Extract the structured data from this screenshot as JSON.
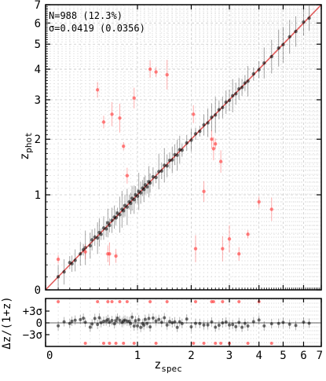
{
  "chart_data": [
    {
      "type": "scatter",
      "scale": "log1p",
      "xlim": [
        0,
        7
      ],
      "ylim": [
        0,
        7
      ],
      "xticks": [
        "0",
        "1",
        "2",
        "3",
        "4",
        "5",
        "6",
        "7"
      ],
      "yticks": [
        "0",
        "1",
        "2",
        "3",
        "4",
        "5",
        "6",
        "7"
      ],
      "xtick_values": [
        0,
        1,
        2,
        3,
        4,
        5,
        6,
        7
      ],
      "ytick_values": [
        0,
        1,
        2,
        3,
        4,
        5,
        6,
        7
      ],
      "grid": true,
      "annotations": [
        "N=988 (12.3%)",
        "σ=0.0419 (0.0356)"
      ],
      "reference_line": {
        "from": [
          0,
          0
        ],
        "to": [
          7,
          7
        ],
        "color": "#e05a5a"
      },
      "colors": {
        "good": "#000000",
        "outlier": "#ff4d4d"
      },
      "series": [
        {
          "role": "good",
          "x": [
            0.1,
            0.15,
            0.2,
            0.22,
            0.25,
            0.3,
            0.33,
            0.35,
            0.4,
            0.42,
            0.45,
            0.48,
            0.5,
            0.52,
            0.55,
            0.58,
            0.6,
            0.62,
            0.65,
            0.68,
            0.7,
            0.72,
            0.75,
            0.78,
            0.8,
            0.82,
            0.85,
            0.88,
            0.9,
            0.92,
            0.95,
            0.97,
            1.0,
            1.02,
            1.05,
            1.08,
            1.1,
            1.12,
            1.15,
            1.18,
            1.2,
            1.25,
            1.3,
            1.35,
            1.4,
            1.45,
            1.5,
            1.55,
            1.6,
            1.65,
            1.7,
            1.75,
            1.8,
            1.9,
            2.0,
            2.1,
            2.2,
            2.3,
            2.4,
            2.5,
            2.6,
            2.7,
            2.8,
            2.9,
            3.0,
            3.1,
            3.2,
            3.3,
            3.4,
            3.5,
            3.6,
            3.8,
            4.0,
            4.2,
            4.5,
            4.8,
            5.0,
            5.3,
            5.6,
            6.0,
            6.3
          ],
          "y": [
            0.1,
            0.14,
            0.22,
            0.21,
            0.24,
            0.3,
            0.34,
            0.36,
            0.38,
            0.44,
            0.47,
            0.46,
            0.52,
            0.5,
            0.57,
            0.56,
            0.63,
            0.6,
            0.66,
            0.7,
            0.69,
            0.75,
            0.73,
            0.8,
            0.78,
            0.85,
            0.83,
            0.9,
            0.88,
            0.95,
            0.93,
            1.0,
            0.98,
            1.05,
            1.03,
            1.1,
            1.08,
            1.15,
            1.12,
            1.2,
            1.18,
            1.28,
            1.27,
            1.37,
            1.38,
            1.48,
            1.47,
            1.57,
            1.58,
            1.68,
            1.67,
            1.78,
            1.77,
            1.92,
            1.98,
            2.12,
            2.18,
            2.33,
            2.38,
            2.52,
            2.58,
            2.72,
            2.78,
            2.93,
            2.98,
            3.12,
            3.18,
            3.33,
            3.38,
            3.52,
            3.58,
            3.83,
            3.98,
            4.23,
            4.48,
            4.83,
            4.98,
            5.33,
            5.58,
            6.05,
            6.25
          ]
        },
        {
          "role": "outlier",
          "x": [
            0.1,
            0.35,
            0.48,
            0.55,
            0.6,
            0.62,
            0.65,
            0.7,
            0.75,
            0.8,
            0.85,
            0.95,
            1.2,
            1.3,
            1.5,
            2.05,
            2.1,
            2.3,
            2.5,
            2.6,
            2.8,
            3.0,
            3.3,
            3.6,
            4.0,
            4.5,
            2.55,
            2.75
          ],
          "y": [
            0.25,
            0.32,
            3.3,
            2.4,
            0.3,
            0.3,
            2.6,
            0.28,
            2.5,
            1.85,
            1.3,
            3.05,
            4.0,
            3.9,
            3.8,
            2.6,
            0.35,
            1.05,
            2.0,
            1.9,
            0.35,
            0.45,
            0.3,
            0.5,
            0.9,
            0.8,
            1.8,
            1.55
          ]
        }
      ]
    },
    {
      "type": "scatter",
      "xlim": [
        0,
        7
      ],
      "xticks": [
        "0",
        "1",
        "2",
        "3",
        "4",
        "5",
        "6",
        "7"
      ],
      "xtick_values": [
        0,
        1,
        2,
        3,
        4,
        5,
        6,
        7
      ],
      "ytick_labels": [
        "+3σ",
        "0",
        "−3σ"
      ],
      "sigma": 0.0419,
      "grid": true,
      "reference_line": {
        "y": 0,
        "color": "#666666"
      }
    }
  ],
  "axes": {
    "xlabel": "z",
    "xlabel_sub": "spec",
    "ylabel_top": "z",
    "ylabel_top_sub": "phot",
    "ylabel_bottom": "Δz/(1+z)"
  }
}
